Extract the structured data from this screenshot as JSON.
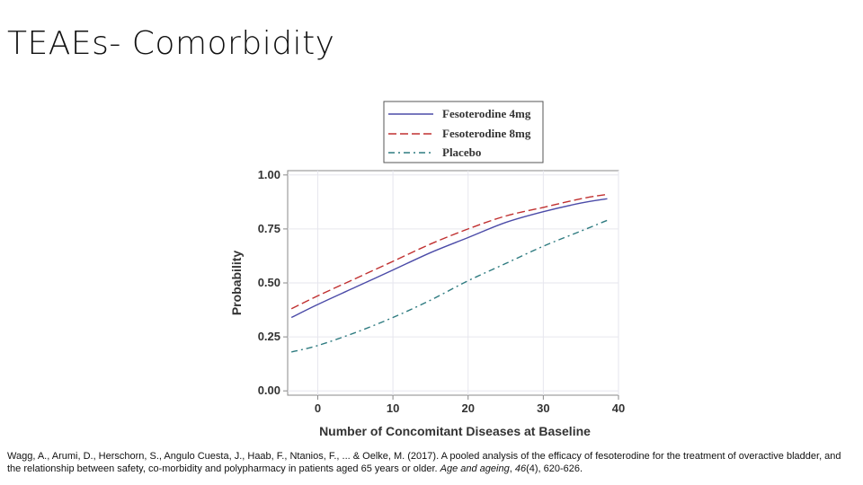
{
  "slide": {
    "title": "TEAEs- Comorbidity"
  },
  "citation": {
    "text_before": "Wagg, A., Arumi, D., Herschorn, S., Angulo Cuesta, J., Haab, F., Ntanios, F., ... & Oelke, M. (2017). A pooled analysis of the efficacy of fesoterodine for the treatment of overactive bladder, and the relationship between safety, co-morbidity and polypharmacy in patients aged 65 years or older. ",
    "journal": "Age and ageing",
    "sep": ", ",
    "volume": "46",
    "text_after": "(4), 620-626."
  },
  "colors": {
    "fesoterodine_4mg": "#4b4ba8",
    "fesoterodine_8mg": "#c03030",
    "placebo": "#2e7b80",
    "axis": "#888888",
    "grid": "#e6e6ee"
  },
  "chart_data": {
    "type": "line",
    "title": "",
    "xlabel": "Number of Concomitant Diseases at Baseline",
    "ylabel": "Probability",
    "xlim": [
      -4,
      40
    ],
    "ylim": [
      -0.02,
      1.02
    ],
    "xticks": [
      0,
      10,
      20,
      30,
      40
    ],
    "xtick_labels": [
      "0",
      "10",
      "20",
      "30",
      "40"
    ],
    "yticks": [
      0.0,
      0.25,
      0.5,
      0.75,
      1.0
    ],
    "ytick_labels": [
      "0.00",
      "0.25",
      "0.50",
      "0.75",
      "1.00"
    ],
    "grid": true,
    "legend_position": "top",
    "series": [
      {
        "name": "Fesoterodine 4mg",
        "style": "solid",
        "color": "#4b4ba8",
        "x": [
          -3.5,
          0,
          5,
          10,
          15,
          20,
          25,
          30,
          35,
          38.5
        ],
        "y": [
          0.34,
          0.4,
          0.48,
          0.56,
          0.64,
          0.71,
          0.78,
          0.83,
          0.87,
          0.89
        ]
      },
      {
        "name": "Fesoterodine 8mg",
        "style": "longdash",
        "color": "#c03030",
        "x": [
          -3.5,
          0,
          5,
          10,
          15,
          20,
          25,
          30,
          35,
          38.5
        ],
        "y": [
          0.38,
          0.44,
          0.52,
          0.6,
          0.68,
          0.75,
          0.81,
          0.85,
          0.89,
          0.91
        ]
      },
      {
        "name": "Placebo",
        "style": "dashdot",
        "color": "#2e7b80",
        "x": [
          -3.5,
          0,
          5,
          10,
          15,
          20,
          25,
          30,
          35,
          38.5
        ],
        "y": [
          0.18,
          0.21,
          0.27,
          0.34,
          0.42,
          0.51,
          0.59,
          0.67,
          0.74,
          0.79
        ]
      }
    ]
  }
}
